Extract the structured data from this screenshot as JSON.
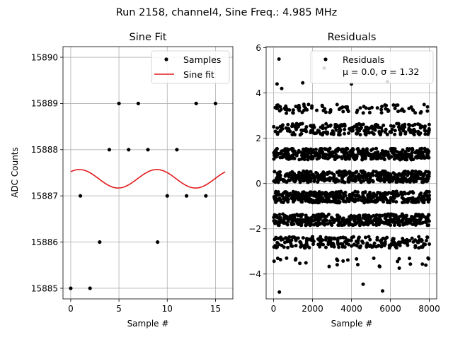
{
  "suptitle": "Run 2158, channel4, Sine Freq.: 4.985 MHz",
  "colors": {
    "samples": "#000000",
    "fit": "#e41a1c",
    "grid": "#b0b0b0"
  },
  "chart_data": [
    {
      "type": "scatter",
      "title": "Sine Fit",
      "xlabel": "Sample #",
      "ylabel": "ADC Counts",
      "xlim": [
        -0.8,
        16.8
      ],
      "ylim": [
        15884.77,
        15890.23
      ],
      "xticks": [
        0,
        5,
        10,
        15
      ],
      "xtick_labels": [
        "0",
        "5",
        "10",
        "15"
      ],
      "yticks": [
        15885,
        15886,
        15887,
        15888,
        15889,
        15890
      ],
      "ytick_labels": [
        "15885",
        "15886",
        "15887",
        "15888",
        "15889",
        "15890"
      ],
      "grid": true,
      "legend_position": "top-right",
      "legend": [
        "Samples",
        "Sine fit"
      ],
      "series": [
        {
          "name": "Samples",
          "kind": "points",
          "x": [
            0,
            1,
            2,
            3,
            4,
            5,
            6,
            7,
            8,
            9,
            10,
            11,
            12,
            13,
            14,
            15
          ],
          "y": [
            15885,
            15887,
            15885,
            15886,
            15888,
            15889,
            15888,
            15889,
            15888,
            15886,
            15887,
            15888,
            15887,
            15889,
            15887,
            15889
          ]
        },
        {
          "name": "Sine fit",
          "kind": "line",
          "function": "sine",
          "offset": 15887.37,
          "amplitude": 0.2,
          "period": 8.02,
          "x_of_peak": 0.9,
          "x_range": [
            0,
            16
          ]
        }
      ]
    },
    {
      "type": "scatter",
      "title": "Residuals",
      "xlabel": "Sample #",
      "xlim": [
        -380,
        8380
      ],
      "ylim": [
        -5.1,
        6.05
      ],
      "xticks": [
        0,
        2000,
        4000,
        6000,
        8000
      ],
      "xtick_labels": [
        "0",
        "2000",
        "4000",
        "6000",
        "8000"
      ],
      "yticks": [
        -4,
        -2,
        0,
        2,
        4,
        6
      ],
      "ytick_labels": [
        "−4",
        "−2",
        "0",
        "2",
        "4",
        "6"
      ],
      "grid": true,
      "legend_position": "top-right",
      "legend": [
        "Residuals",
        "μ = 0.0, σ = 1.32"
      ],
      "n_samples": 8000,
      "series": [
        {
          "name": "Residuals",
          "kind": "points",
          "dense_bands": [
            {
              "center": 2.4,
              "half_width": 0.25,
              "density": "high"
            },
            {
              "center": 1.3,
              "half_width": 0.25,
              "density": "full"
            },
            {
              "center": 0.3,
              "half_width": 0.25,
              "density": "full"
            },
            {
              "center": -0.6,
              "half_width": 0.25,
              "density": "full"
            },
            {
              "center": -1.6,
              "half_width": 0.25,
              "density": "full"
            },
            {
              "center": -2.6,
              "half_width": 0.25,
              "density": "high"
            }
          ],
          "sparse_bands": [
            {
              "center": 3.3,
              "half_width": 0.2,
              "density": "medium"
            },
            {
              "center": -3.5,
              "half_width": 0.25,
              "density": "low"
            }
          ],
          "outliers": [
            [
              280,
              5.5
            ],
            [
              2600,
              5.1
            ],
            [
              180,
              4.4
            ],
            [
              4000,
              4.4
            ],
            [
              5850,
              4.5
            ],
            [
              1500,
              4.45
            ],
            [
              420,
              4.2
            ],
            [
              300,
              -4.8
            ],
            [
              4600,
              -4.45
            ],
            [
              5600,
              -4.75
            ]
          ]
        }
      ]
    }
  ]
}
